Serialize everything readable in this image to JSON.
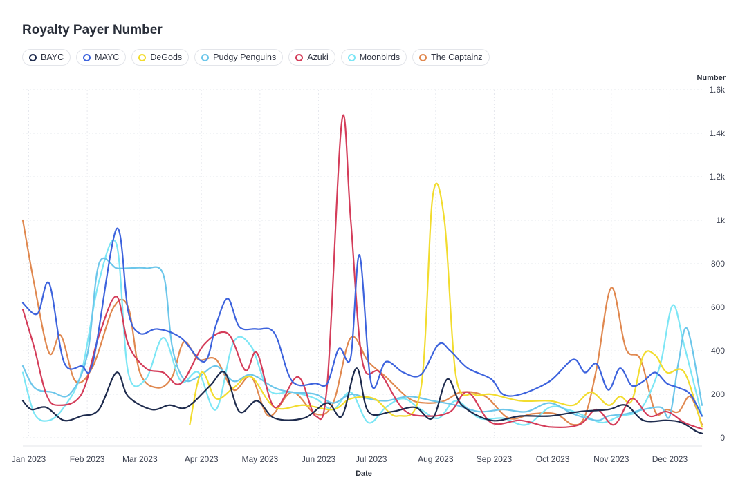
{
  "chart_data": {
    "type": "line",
    "title": "Royalty Payer Number",
    "xlabel": "Date",
    "ylabel": "Number",
    "ylim": [
      0,
      1600
    ],
    "x_range": [
      0,
      11.6
    ],
    "y_ticks": [
      0,
      200,
      400,
      600,
      800,
      1000,
      1200,
      1400,
      1600
    ],
    "y_tick_labels": [
      "0",
      "200",
      "400",
      "600",
      "800",
      "1k",
      "1.2k",
      "1.4k",
      "1.6k"
    ],
    "x_ticks": [
      0.1,
      1.1,
      2.0,
      3.05,
      4.05,
      5.05,
      5.95,
      7.05,
      8.05,
      9.05,
      10.05,
      11.05
    ],
    "x_tick_labels": [
      "Jan 2023",
      "Feb 2023",
      "Mar 2023",
      "Apr 2023",
      "May 2023",
      "Jun 2023",
      "Jul 2023",
      "Aug 2023",
      "Sep 2023",
      "Oct 2023",
      "Nov 2023",
      "Dec 2023"
    ],
    "grid": true,
    "legend_position": "top",
    "series": [
      {
        "name": "BAYC",
        "color": "#1e2b4d",
        "x": [
          0,
          0.15,
          0.4,
          0.7,
          1.0,
          1.3,
          1.6,
          1.8,
          2.2,
          2.5,
          2.8,
          3.2,
          3.45,
          3.7,
          4.0,
          4.3,
          4.8,
          5.2,
          5.45,
          5.7,
          5.9,
          6.3,
          6.7,
          7.0,
          7.25,
          7.5,
          8.0,
          8.5,
          9.0,
          9.5,
          10.0,
          10.3,
          10.6,
          11.0,
          11.25,
          11.5,
          11.6
        ],
        "values": [
          170,
          130,
          140,
          80,
          100,
          130,
          300,
          190,
          130,
          150,
          140,
          240,
          300,
          120,
          170,
          90,
          90,
          160,
          100,
          320,
          120,
          120,
          140,
          90,
          270,
          150,
          80,
          100,
          100,
          120,
          130,
          150,
          80,
          80,
          70,
          30,
          20
        ]
      },
      {
        "name": "MAYC",
        "color": "#3d63dd",
        "x": [
          0,
          0.25,
          0.45,
          0.7,
          1.0,
          1.2,
          1.6,
          1.8,
          2.0,
          2.3,
          2.7,
          3.1,
          3.3,
          3.5,
          3.7,
          4.0,
          4.3,
          4.6,
          5.0,
          5.2,
          5.4,
          5.6,
          5.75,
          5.95,
          6.2,
          6.5,
          6.8,
          7.1,
          7.3,
          7.6,
          8.0,
          8.2,
          8.5,
          9.0,
          9.4,
          9.6,
          9.8,
          10.0,
          10.2,
          10.4,
          10.6,
          10.8,
          11.0,
          11.2,
          11.4,
          11.6
        ],
        "values": [
          620,
          570,
          710,
          350,
          330,
          350,
          960,
          580,
          480,
          500,
          460,
          350,
          520,
          640,
          510,
          500,
          480,
          260,
          250,
          250,
          410,
          370,
          840,
          250,
          350,
          300,
          290,
          430,
          400,
          320,
          270,
          200,
          200,
          260,
          360,
          300,
          340,
          220,
          320,
          240,
          260,
          300,
          250,
          230,
          200,
          100
        ]
      },
      {
        "name": "DeGods",
        "color": "#f2dc2e",
        "x": [
          2.85,
          3.05,
          3.3,
          3.6,
          3.9,
          4.3,
          4.8,
          5.3,
          5.6,
          6.0,
          6.4,
          6.8,
          7.0,
          7.2,
          7.4,
          7.7,
          8.0,
          8.5,
          9.0,
          9.4,
          9.7,
          10.0,
          10.2,
          10.4,
          10.6,
          10.8,
          11.0,
          11.3,
          11.6
        ],
        "values": [
          60,
          300,
          180,
          230,
          280,
          140,
          150,
          130,
          180,
          180,
          100,
          230,
          1110,
          1000,
          280,
          200,
          200,
          170,
          170,
          150,
          210,
          150,
          190,
          170,
          380,
          380,
          300,
          300,
          50
        ]
      },
      {
        "name": "Pudgy Penguins",
        "color": "#6cc6ea",
        "x": [
          0,
          0.2,
          0.5,
          0.8,
          1.1,
          1.3,
          1.6,
          1.8,
          2.1,
          2.4,
          2.55,
          2.75,
          3.0,
          3.3,
          3.6,
          3.9,
          4.3,
          4.6,
          5.0,
          5.3,
          5.6,
          5.9,
          6.2,
          6.6,
          7.0,
          7.4,
          7.8,
          8.2,
          8.6,
          9.0,
          9.4,
          9.8,
          10.0,
          10.3,
          10.6,
          10.9,
          11.05,
          11.2,
          11.35,
          11.6
        ],
        "values": [
          330,
          230,
          210,
          200,
          380,
          800,
          780,
          780,
          780,
          750,
          420,
          270,
          280,
          330,
          260,
          290,
          230,
          210,
          200,
          160,
          200,
          180,
          170,
          190,
          170,
          150,
          120,
          130,
          120,
          160,
          110,
          80,
          100,
          110,
          130,
          140,
          100,
          350,
          500,
          150
        ]
      },
      {
        "name": "Azuki",
        "color": "#d43d5a",
        "x": [
          0,
          0.2,
          0.4,
          0.6,
          1.0,
          1.3,
          1.6,
          1.8,
          2.1,
          2.4,
          2.7,
          3.1,
          3.5,
          3.8,
          4.0,
          4.3,
          4.7,
          5.0,
          5.2,
          5.45,
          5.6,
          5.8,
          6.1,
          6.5,
          6.9,
          7.3,
          7.6,
          8.0,
          8.5,
          9.0,
          9.5,
          9.8,
          10.1,
          10.4,
          10.7,
          11.0,
          11.3,
          11.6
        ],
        "values": [
          590,
          410,
          200,
          150,
          200,
          470,
          650,
          430,
          320,
          300,
          250,
          430,
          480,
          310,
          390,
          140,
          280,
          100,
          250,
          1460,
          1000,
          350,
          300,
          130,
          100,
          120,
          210,
          70,
          80,
          50,
          60,
          130,
          60,
          180,
          100,
          120,
          70,
          40
        ]
      },
      {
        "name": "Moonbirds",
        "color": "#7ce6f5",
        "x": [
          0,
          0.2,
          0.45,
          0.7,
          1.0,
          1.3,
          1.6,
          1.8,
          2.1,
          2.4,
          2.7,
          3.0,
          3.3,
          3.6,
          3.9,
          4.2,
          4.6,
          5.0,
          5.3,
          5.6,
          5.9,
          6.2,
          6.5,
          6.8,
          7.1,
          7.4,
          7.8,
          8.2,
          8.6,
          9.0,
          9.3,
          9.6,
          9.9,
          10.2,
          10.5,
          10.7,
          10.9,
          11.1,
          11.3,
          11.6
        ],
        "values": [
          300,
          110,
          80,
          140,
          300,
          720,
          890,
          300,
          270,
          460,
          260,
          300,
          130,
          440,
          420,
          220,
          210,
          180,
          130,
          210,
          70,
          140,
          180,
          130,
          90,
          170,
          90,
          90,
          60,
          140,
          130,
          100,
          70,
          100,
          120,
          200,
          350,
          610,
          420,
          100
        ]
      },
      {
        "name": "The Captainz",
        "color": "#e0884f",
        "x": [
          0,
          0.2,
          0.45,
          0.65,
          0.9,
          1.2,
          1.55,
          1.8,
          2.0,
          2.3,
          2.55,
          2.75,
          3.0,
          3.3,
          3.6,
          3.9,
          4.2,
          4.6,
          5.0,
          5.3,
          5.6,
          5.9,
          6.2,
          6.6,
          6.9,
          7.2,
          7.5,
          7.9,
          8.3,
          8.7,
          9.1,
          9.4,
          9.6,
          9.8,
          10.05,
          10.3,
          10.55,
          10.8,
          11.0,
          11.2,
          11.4,
          11.6
        ],
        "values": [
          1000,
          700,
          390,
          470,
          260,
          330,
          600,
          600,
          300,
          230,
          280,
          440,
          360,
          360,
          220,
          280,
          100,
          210,
          110,
          160,
          460,
          350,
          280,
          180,
          160,
          170,
          210,
          190,
          90,
          110,
          110,
          60,
          100,
          320,
          690,
          410,
          360,
          120,
          130,
          120,
          190,
          60
        ]
      }
    ]
  }
}
